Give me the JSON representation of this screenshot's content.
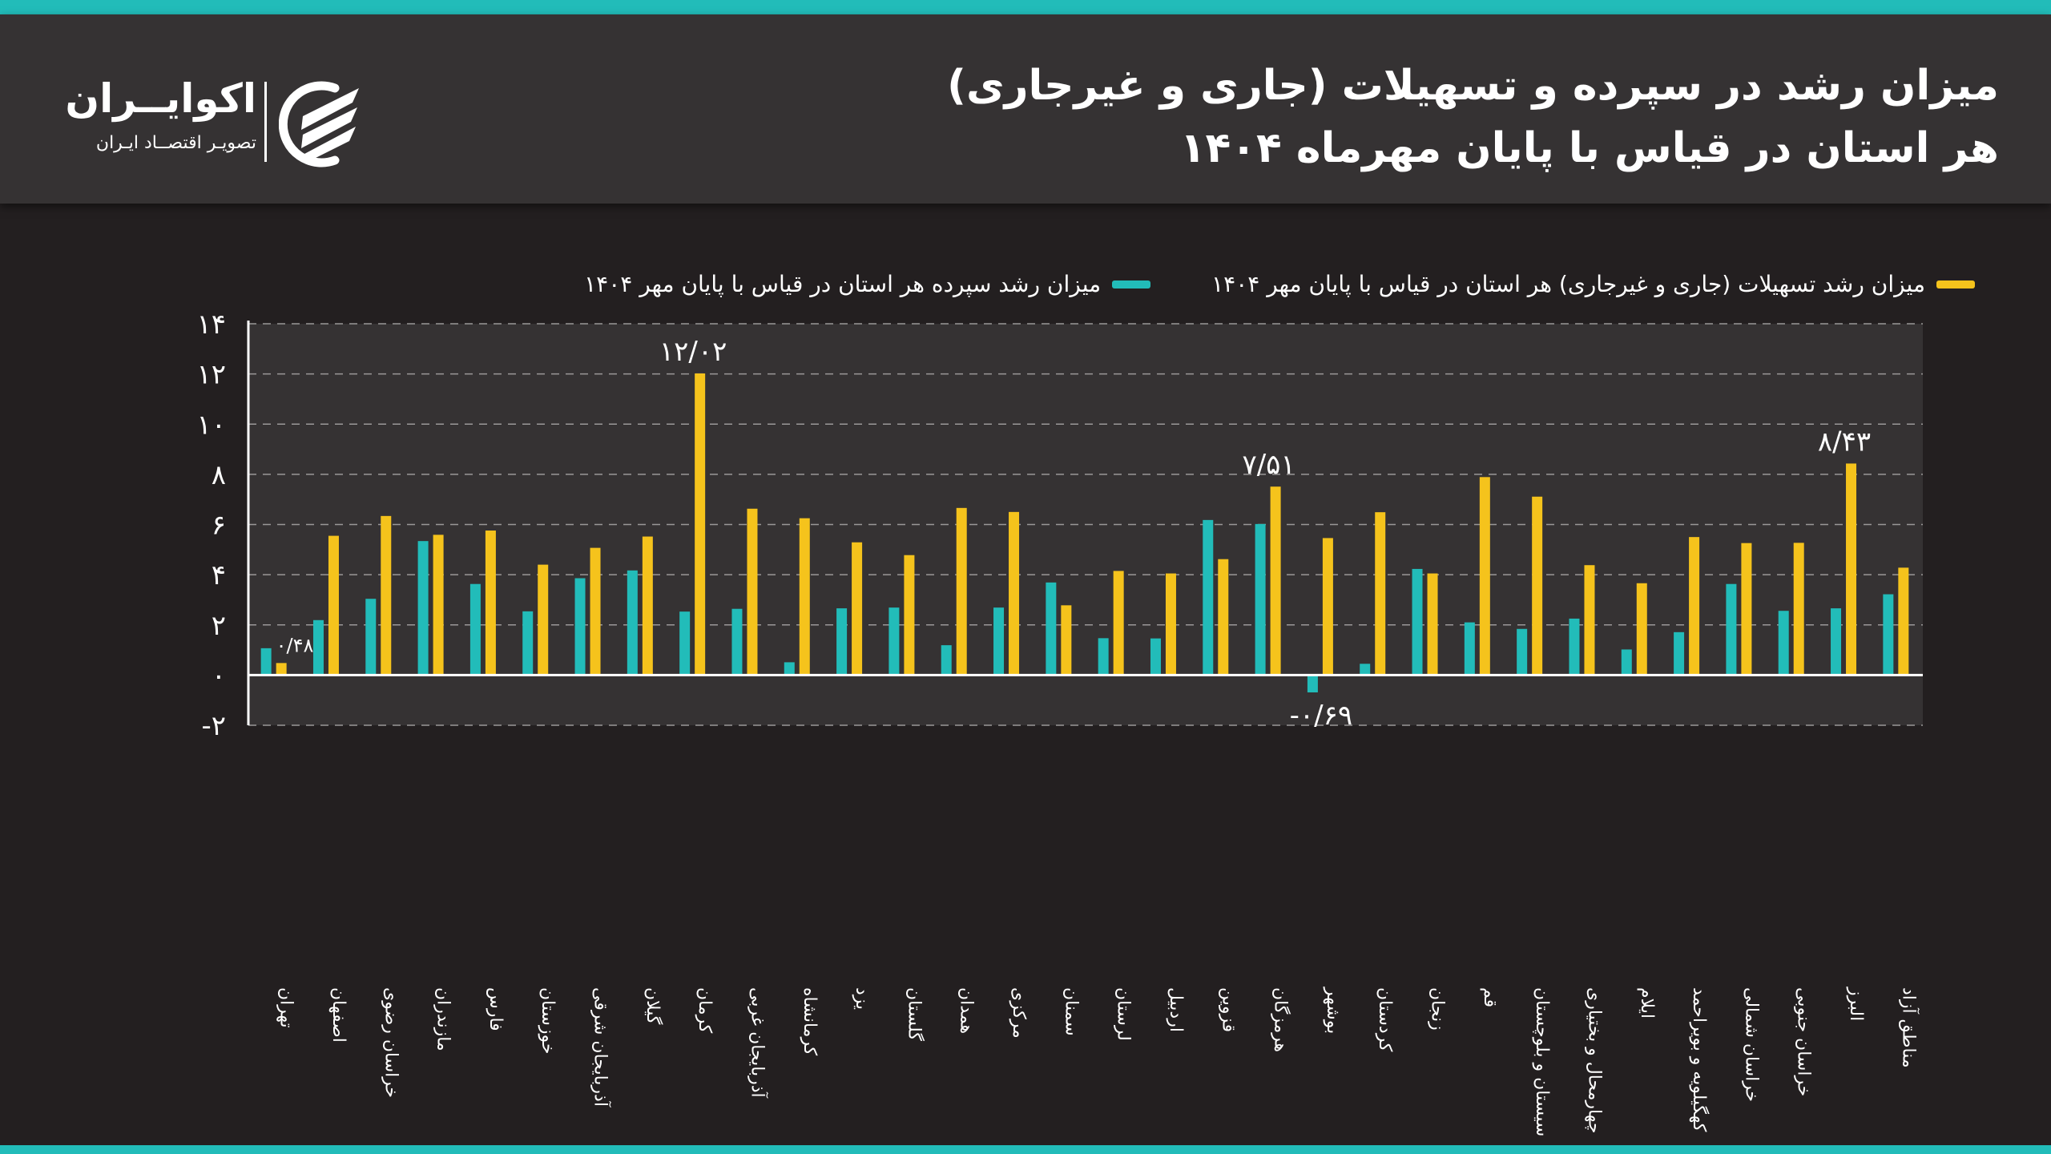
{
  "header": {
    "title_line1": "میزان رشد در سپرده و تسهیلات (جاری و غیرجاری)",
    "title_line2": "هر استان در قیاس با پایان مهرماه ۱۴۰۴"
  },
  "logo": {
    "name": "اکوایــران",
    "tagline": "تصویـر اقتصــاد ایـران",
    "icon": "ecoiran-logo-icon"
  },
  "colors": {
    "deposit": "#22bcb9",
    "loans": "#f5c31c",
    "accent": "#22bcb9",
    "background": "#231f20",
    "panel": "#353233"
  },
  "chart_data": {
    "type": "bar",
    "title": "میزان رشد در سپرده و تسهیلات (جاری و غیرجاری) هر استان در قیاس با پایان مهرماه ۱۴۰۴",
    "xlabel": "",
    "ylabel": "",
    "ylim": [
      -2,
      14
    ],
    "yticks": [
      -2,
      0,
      2,
      4,
      6,
      8,
      10,
      12,
      14
    ],
    "ytick_labels": [
      "-۲",
      "۰",
      "۲",
      "۴",
      "۶",
      "۸",
      "۱۰",
      "۱۲",
      "۱۴"
    ],
    "grid": true,
    "legend_position": "top-right",
    "categories": [
      "تهران",
      "اصفهان",
      "خراسان رضوی",
      "مازندران",
      "فارس",
      "خوزستان",
      "آذربایجان شرقی",
      "گیلان",
      "کرمان",
      "آذربایجان غربی",
      "کرمانشاه",
      "یزد",
      "گلستان",
      "همدان",
      "مرکزی",
      "سمنان",
      "لرستان",
      "اردبیل",
      "قزوین",
      "هرمزگان",
      "بوشهر",
      "کردستان",
      "زنجان",
      "قم",
      "سیستان و بلوچستان",
      "چهارمحال و بختیاری",
      "ایلام",
      "کهگیلویه و بویراحمد",
      "خراسان شمالی",
      "خراسان جنوبی",
      "البرز",
      "مناطق آزاد"
    ],
    "series": [
      {
        "name": "میزان رشد سپرده هر استان در قیاس با پایان مهر ۱۴۰۴",
        "color": "#22bcb9",
        "values": [
          1.07,
          2.19,
          3.04,
          5.34,
          3.63,
          2.54,
          3.86,
          4.17,
          2.53,
          2.64,
          0.51,
          2.66,
          2.69,
          1.19,
          2.69,
          3.69,
          1.47,
          1.46,
          6.18,
          6.02,
          -0.69,
          0.45,
          4.23,
          2.1,
          1.84,
          2.25,
          1.02,
          1.71,
          3.63,
          2.56,
          2.66,
          3.22
        ]
      },
      {
        "name": "میزان رشد تسهیلات (جاری و غیرجاری) هر استان در قیاس با پایان مهر ۱۴۰۴",
        "color": "#f5c31c",
        "values": [
          0.48,
          5.55,
          6.34,
          5.59,
          5.76,
          4.4,
          5.07,
          5.52,
          12.02,
          6.63,
          6.25,
          5.29,
          4.78,
          6.66,
          6.5,
          2.78,
          4.15,
          4.05,
          4.62,
          7.51,
          5.46,
          6.49,
          4.05,
          7.89,
          7.11,
          4.38,
          3.66,
          5.5,
          5.26,
          5.27,
          8.43,
          4.28
        ]
      }
    ],
    "annotations": [
      {
        "category": "تهران",
        "series": 1,
        "text": "۰/۴۸"
      },
      {
        "category": "کرمان",
        "series": 1,
        "text": "۱۲/۰۲"
      },
      {
        "category": "هرمزگان",
        "series": 1,
        "text": "۷/۵۱"
      },
      {
        "category": "بوشهر",
        "series": 0,
        "text": "-۰/۶۹"
      },
      {
        "category": "البرز",
        "series": 1,
        "text": "۸/۴۳"
      }
    ]
  }
}
